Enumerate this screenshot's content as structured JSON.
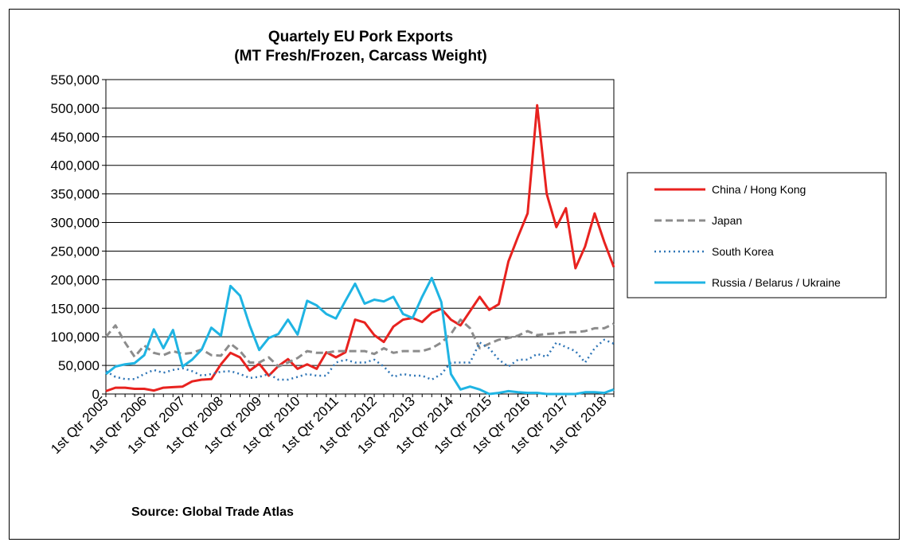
{
  "chart_data": {
    "type": "line",
    "title": "Quartely EU Pork Exports",
    "subtitle": "(MT Fresh/Frozen, Carcass Weight)",
    "source": "Source: Global Trade Atlas",
    "ylim": [
      0,
      550000
    ],
    "yticks": [
      "0",
      "50,000",
      "100,000",
      "150,000",
      "200,000",
      "250,000",
      "300,000",
      "350,000",
      "400,000",
      "450,000",
      "500,000",
      "550,000"
    ],
    "xticks": [
      "1st Qtr 2005",
      "1st Qtr 2006",
      "1st Qtr 2007",
      "1st Qtr 2008",
      "1st Qtr 2009",
      "1st Qtr 2010",
      "1st Qtr 2011",
      "1st Qtr 2012",
      "1st Qtr 2013",
      "1st Qtr 2014",
      "1st Qtr 2015",
      "1st Qtr 2016",
      "1st Qtr 2017",
      "1st Qtr 2018"
    ],
    "grid": "horizontal",
    "legend_position": "right",
    "x_start": "1st Qtr 2005",
    "x_end": "1st Qtr 2018",
    "series": [
      {
        "name": "China / Hong Kong",
        "color": "#e8221f",
        "style": "solid",
        "values": [
          5000,
          11000,
          11000,
          9000,
          9000,
          6000,
          11000,
          12000,
          13000,
          22000,
          25000,
          26000,
          52000,
          72000,
          64000,
          41000,
          53000,
          32000,
          49000,
          61000,
          44000,
          52000,
          44000,
          73000,
          64000,
          73000,
          130000,
          125000,
          103000,
          91000,
          118000,
          130000,
          133000,
          126000,
          142000,
          149000,
          130000,
          120000,
          145000,
          170000,
          147000,
          157000,
          232000,
          275000,
          316000,
          505000,
          350000,
          292000,
          325000,
          220000,
          258000,
          316000,
          266000,
          222000
        ]
      },
      {
        "name": "Japan",
        "color": "#8c8c8c",
        "style": "dashed",
        "values": [
          100000,
          120000,
          90000,
          65000,
          85000,
          72000,
          68000,
          75000,
          70000,
          72000,
          78000,
          68000,
          67000,
          88000,
          75000,
          55000,
          55000,
          64000,
          48000,
          55000,
          63000,
          75000,
          72000,
          72000,
          75000,
          75000,
          75000,
          75000,
          70000,
          80000,
          72000,
          75000,
          75000,
          75000,
          80000,
          90000,
          105000,
          130000,
          115000,
          80000,
          88000,
          95000,
          98000,
          102000,
          110000,
          103000,
          105000,
          106000,
          108000,
          108000,
          110000,
          115000,
          115000,
          123000
        ]
      },
      {
        "name": "South Korea",
        "color": "#2e75b6",
        "style": "dotted",
        "values": [
          40000,
          30000,
          26000,
          26000,
          35000,
          42000,
          37000,
          42000,
          45000,
          40000,
          32000,
          35000,
          39000,
          40000,
          35000,
          28000,
          30000,
          35000,
          25000,
          25000,
          30000,
          35000,
          32000,
          32000,
          55000,
          60000,
          55000,
          55000,
          60000,
          48000,
          30000,
          35000,
          32000,
          32000,
          25000,
          35000,
          55000,
          55000,
          55000,
          90000,
          80000,
          60000,
          48000,
          60000,
          60000,
          70000,
          65000,
          90000,
          82000,
          75000,
          55000,
          80000,
          95000,
          88000
        ]
      },
      {
        "name": "Russia / Belarus / Ukraine",
        "color": "#1fb4e3",
        "style": "solid",
        "values": [
          35000,
          48000,
          52000,
          54000,
          68000,
          113000,
          80000,
          112000,
          48000,
          60000,
          78000,
          116000,
          102000,
          189000,
          172000,
          120000,
          77000,
          98000,
          105000,
          130000,
          104000,
          163000,
          155000,
          140000,
          132000,
          163000,
          193000,
          158000,
          165000,
          162000,
          170000,
          140000,
          133000,
          170000,
          203000,
          161000,
          35000,
          8000,
          13000,
          8000,
          0,
          2000,
          5000,
          3000,
          2000,
          2000,
          0,
          0,
          0,
          0,
          3000,
          3000,
          2000,
          8000
        ]
      }
    ]
  }
}
